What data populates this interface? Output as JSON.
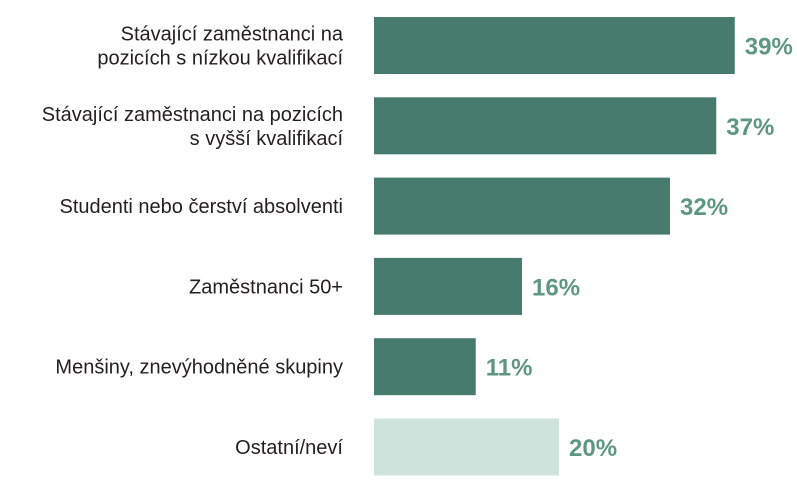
{
  "chart_data": {
    "type": "bar",
    "orientation": "horizontal",
    "categories": [
      [
        "Stávající zaměstnanci na",
        "pozicích s nízkou kvalifikací"
      ],
      [
        "Stávající zaměstnanci na pozicích",
        "s vyšší kvalifikací"
      ],
      [
        "Studenti nebo čerství absolventi"
      ],
      [
        "Zaměstnanci 50+"
      ],
      [
        "Menšiny, znevýhodněné skupiny"
      ],
      [
        "Ostatní/neví"
      ]
    ],
    "values": [
      39,
      37,
      32,
      16,
      11,
      20
    ],
    "value_labels": [
      "39%",
      "37%",
      "32%",
      "16%",
      "11%",
      "20%"
    ],
    "bar_colors": [
      "#467b6d",
      "#467b6d",
      "#467b6d",
      "#467b6d",
      "#467b6d",
      "#cfe2dc"
    ],
    "value_label_color": "#5e9684",
    "label_color": "#231f20",
    "xlim": [
      0,
      42
    ],
    "grid": false,
    "legend": "none",
    "title": "",
    "xlabel": "",
    "ylabel": ""
  }
}
